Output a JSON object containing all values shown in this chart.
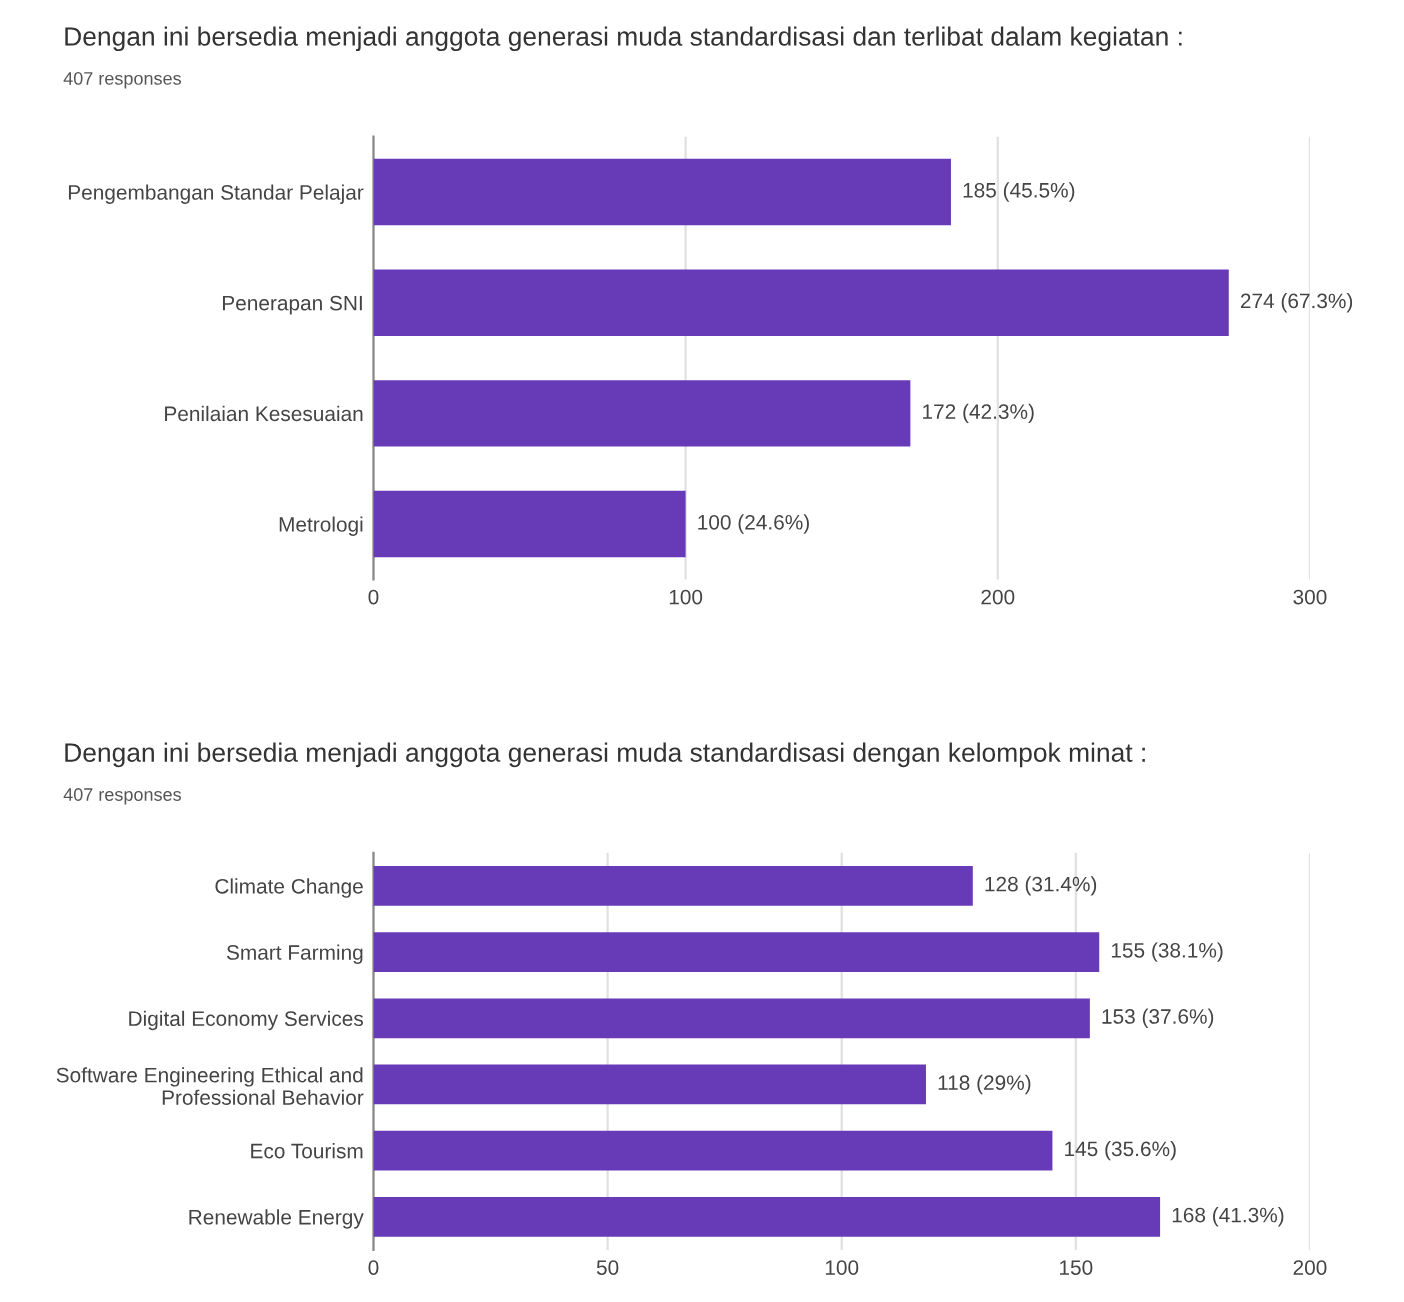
{
  "chart_data": [
    {
      "type": "bar",
      "orientation": "horizontal",
      "title": "Dengan ini bersedia menjadi anggota generasi muda standardisasi dan terlibat dalam kegiatan :",
      "subtitle": "407 responses",
      "categories": [
        "Pengembangan Standar Pelajar",
        "Penerapan SNI",
        "Penilaian Kesesuaian",
        "Metrologi"
      ],
      "values": [
        185,
        274,
        172,
        100
      ],
      "color": "#673ab7",
      "value_labels": [
        "185 (45.5%)",
        "274 (67.3%)",
        "172 (42.3%)",
        "100 (24.6%)"
      ],
      "xlim": [
        0,
        300
      ],
      "xticks": [
        0,
        100,
        200,
        300
      ],
      "grid": "x"
    },
    {
      "type": "bar",
      "orientation": "horizontal",
      "title": "Dengan ini bersedia menjadi anggota generasi muda standardisasi dengan kelompok minat :",
      "subtitle": "407 responses",
      "categories": [
        "Climate Change",
        "Smart Farming",
        "Digital Economy Services",
        "Software Engineering Ethical and\nProfessional Behavior",
        "Eco Tourism",
        "Renewable Energy"
      ],
      "values": [
        128,
        155,
        153,
        118,
        145,
        168
      ],
      "color": "#673ab7",
      "value_labels": [
        "128 (31.4%)",
        "155 (38.1%)",
        "153 (37.6%)",
        "118 (29%)",
        "145 (35.6%)",
        "168 (41.3%)"
      ],
      "xlim": [
        0,
        200
      ],
      "xticks": [
        0,
        50,
        100,
        150,
        200
      ],
      "grid": "x"
    }
  ]
}
